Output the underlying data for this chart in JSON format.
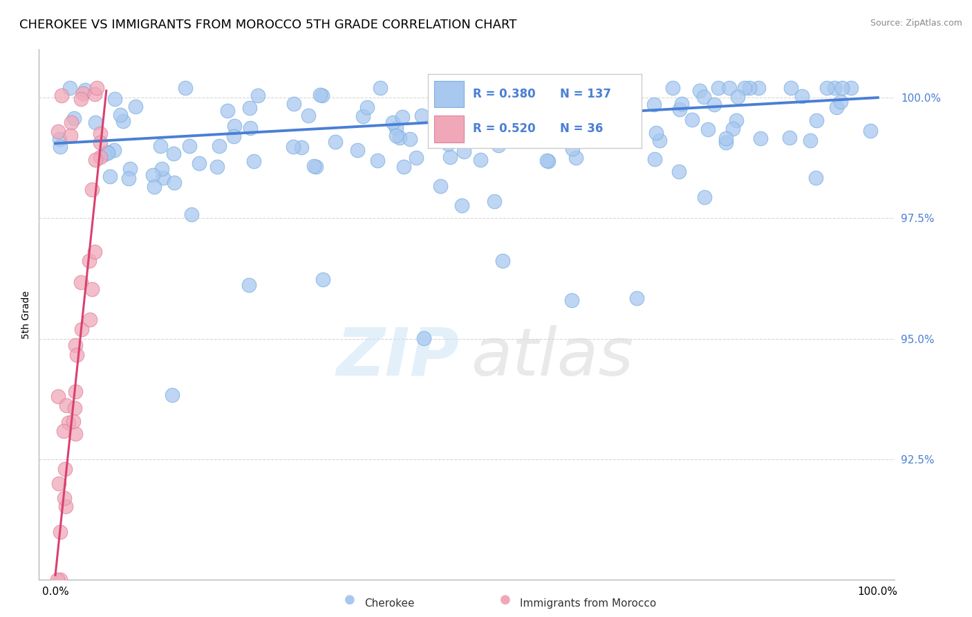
{
  "title": "CHEROKEE VS IMMIGRANTS FROM MOROCCO 5TH GRADE CORRELATION CHART",
  "source_text": "Source: ZipAtlas.com",
  "ylabel": "5th Grade",
  "xmin": 0.0,
  "xmax": 1.0,
  "ymin": 0.9,
  "ymax": 1.01,
  "yticks": [
    0.925,
    0.95,
    0.975,
    1.0
  ],
  "ytick_labels": [
    "92.5%",
    "95.0%",
    "97.5%",
    "100.0%"
  ],
  "r_blue": 0.38,
  "n_blue": 137,
  "r_pink": 0.52,
  "n_pink": 36,
  "blue_color": "#4a7fd4",
  "pink_color": "#d94070",
  "dot_blue_color": "#a8c8f0",
  "dot_pink_color": "#f0a8b8",
  "background_color": "#ffffff",
  "grid_color": "#cccccc",
  "title_fontsize": 13,
  "blue_line_intercept": 0.9905,
  "blue_line_slope": 0.0095,
  "pink_line_intercept": 0.901,
  "pink_line_slope": 1.62,
  "pink_line_xmax": 0.062
}
